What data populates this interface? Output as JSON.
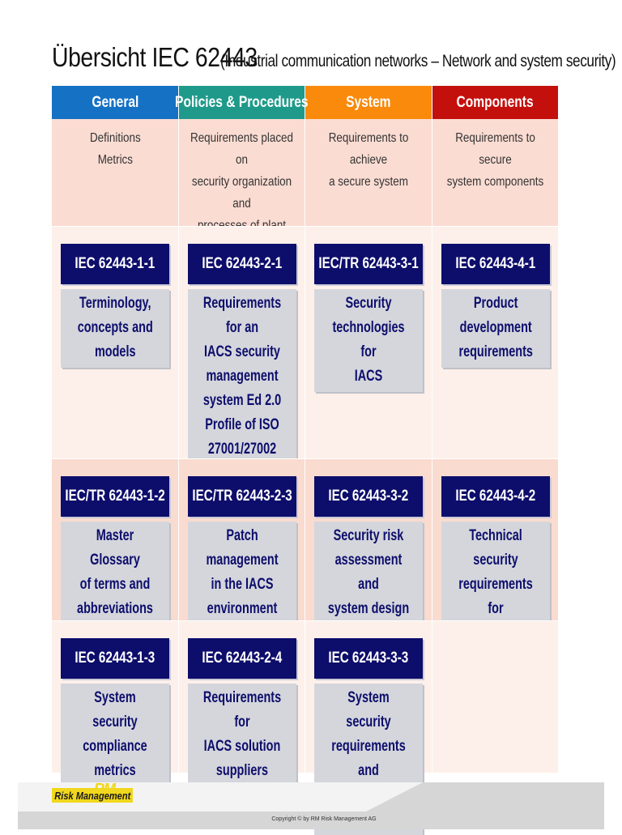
{
  "title": {
    "main": "Übersicht IEC 62443",
    "subtitle": "(Industrial communication networks – Network and system security)"
  },
  "columns": [
    {
      "header": "General",
      "description": "Definitions\nMetrics",
      "color": "#1571c4"
    },
    {
      "header": "Policies & Procedures",
      "description": "Requirements placed on\nsecurity organization and\nprocesses of plant owner\nand suppliers",
      "color": "#1f9a8a"
    },
    {
      "header": "System",
      "description": "Requirements to achieve\na secure system",
      "color": "#f98a0c"
    },
    {
      "header": "Components",
      "description": "Requirements to secure\nsystem components",
      "color": "#c4100d"
    }
  ],
  "standards": {
    "row1": [
      {
        "id": "IEC 62443-1-1",
        "desc": "Terminology,\nconcepts and\nmodels"
      },
      {
        "id": "IEC 62443-2-1",
        "desc": "Requirements for an\nIACS security\nmanagement\nsystem Ed 2.0\nProfile of ISO\n27001/27002"
      },
      {
        "id": "IEC/TR 62443-3-1",
        "desc": "Security\ntechnologies for\nIACS"
      },
      {
        "id": "IEC 62443-4-1",
        "desc": "Product\ndevelopment\nrequirements"
      }
    ],
    "row2": [
      {
        "id": "IEC/TR 62443-1-2",
        "desc": "Master Glossary\nof terms and\nabbreviations"
      },
      {
        "id": "IEC/TR 62443-2-3",
        "desc": "Patch management\nin the IACS\nenvironment"
      },
      {
        "id": "IEC 62443-3-2",
        "desc": "Security risk\nassessment and\nsystem design"
      },
      {
        "id": "IEC 62443-4-2",
        "desc": "Technical security\nrequirements for\nIACS products"
      }
    ],
    "row3": [
      {
        "id": "IEC 62443-1-3",
        "desc": "System security\ncompliance metrics"
      },
      {
        "id": "IEC 62443-2-4",
        "desc": "Requirements for\nIACS solution\nsuppliers"
      },
      {
        "id": "IEC 62443-3-3",
        "desc": "System security\nrequirements and\nSecurity Levels"
      }
    ]
  },
  "footer": {
    "logo_mark": "RM",
    "logo_text": "Risk Management",
    "copyright": "Copyright © by RM Risk Management AG"
  }
}
